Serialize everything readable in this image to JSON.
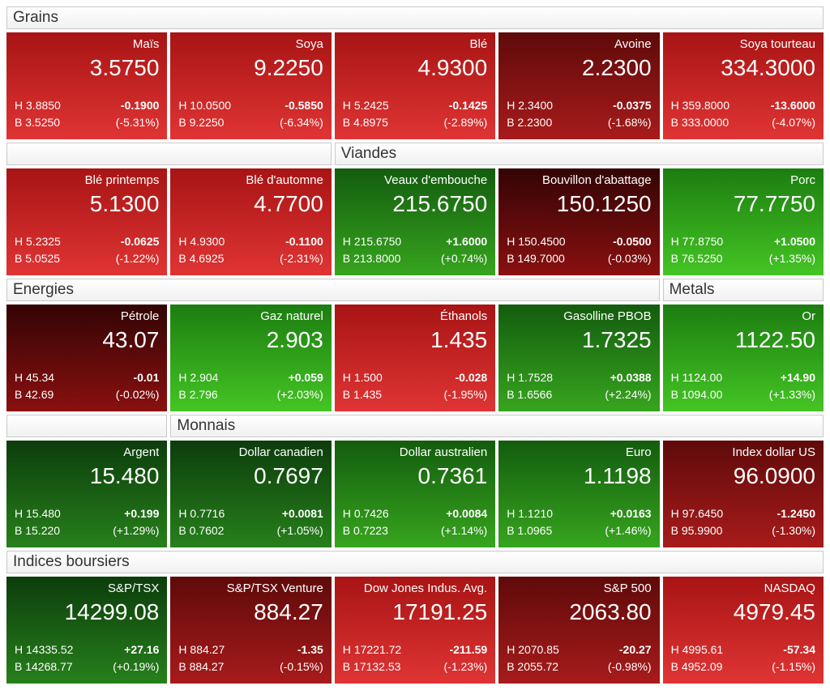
{
  "labels": {
    "high_prefix": "H",
    "low_prefix": "B"
  },
  "palette": {
    "red3": [
      "#a81414",
      "#e03434"
    ],
    "red2": [
      "#5f0a0a",
      "#a81b1b"
    ],
    "red1": [
      "#330404",
      "#8a1010"
    ],
    "green3": [
      "#1c7d10",
      "#44c524"
    ],
    "green2": [
      "#135c0e",
      "#37a51e"
    ],
    "green1": [
      "#0c3d0c",
      "#27801b"
    ]
  },
  "sections": [
    {
      "id": "grains",
      "header": [
        {
          "label": "Grains",
          "span": 5
        }
      ],
      "tiles": [
        {
          "name": "Maïs",
          "price": "3.5750",
          "high": "3.8850",
          "change": "-0.1900",
          "low": "3.5250",
          "pct": "(-5.31%)",
          "tone": "red3"
        },
        {
          "name": "Soya",
          "price": "9.2250",
          "high": "10.0500",
          "change": "-0.5850",
          "low": "9.2250",
          "pct": "(-6.34%)",
          "tone": "red3"
        },
        {
          "name": "Blé",
          "price": "4.9300",
          "high": "5.2425",
          "change": "-0.1425",
          "low": "4.8975",
          "pct": "(-2.89%)",
          "tone": "red3"
        },
        {
          "name": "Avoine",
          "price": "2.2300",
          "high": "2.3400",
          "change": "-0.0375",
          "low": "2.2300",
          "pct": "(-1.68%)",
          "tone": "red2"
        },
        {
          "name": "Soya tourteau",
          "price": "334.3000",
          "high": "359.8000",
          "change": "-13.6000",
          "low": "333.0000",
          "pct": "(-4.07%)",
          "tone": "red3"
        }
      ]
    },
    {
      "id": "viandes",
      "header": [
        {
          "label": "",
          "span": 2
        },
        {
          "label": "Viandes",
          "span": 3
        }
      ],
      "tiles": [
        {
          "name": "Blé printemps",
          "price": "5.1300",
          "high": "5.2325",
          "change": "-0.0625",
          "low": "5.0525",
          "pct": "(-1.22%)",
          "tone": "red3"
        },
        {
          "name": "Blé d'automne",
          "price": "4.7700",
          "high": "4.9300",
          "change": "-0.1100",
          "low": "4.6925",
          "pct": "(-2.31%)",
          "tone": "red3"
        },
        {
          "name": "Veaux d'embouche",
          "price": "215.6750",
          "high": "215.6750",
          "change": "+1.6000",
          "low": "213.8000",
          "pct": "(+0.74%)",
          "tone": "green2"
        },
        {
          "name": "Bouvillon d'abattage",
          "price": "150.1250",
          "high": "150.4500",
          "change": "-0.0500",
          "low": "149.7000",
          "pct": "(-0.03%)",
          "tone": "red1"
        },
        {
          "name": "Porc",
          "price": "77.7750",
          "high": "77.8750",
          "change": "+1.0500",
          "low": "76.5250",
          "pct": "(+1.35%)",
          "tone": "green3"
        }
      ]
    },
    {
      "id": "energies-metals",
      "header": [
        {
          "label": "Energies",
          "span": 4
        },
        {
          "label": "Metals",
          "span": 1
        }
      ],
      "tiles": [
        {
          "name": "Pétrole",
          "price": "43.07",
          "high": "45.34",
          "change": "-0.01",
          "low": "42.69",
          "pct": "(-0.02%)",
          "tone": "red1"
        },
        {
          "name": "Gaz naturel",
          "price": "2.903",
          "high": "2.904",
          "change": "+0.059",
          "low": "2.796",
          "pct": "(+2.03%)",
          "tone": "green3"
        },
        {
          "name": "Éthanols",
          "price": "1.435",
          "high": "1.500",
          "change": "-0.028",
          "low": "1.435",
          "pct": "(-1.95%)",
          "tone": "red3"
        },
        {
          "name": "Gasolline PBOB",
          "price": "1.7325",
          "high": "1.7528",
          "change": "+0.0388",
          "low": "1.6566",
          "pct": "(+2.24%)",
          "tone": "green2"
        },
        {
          "name": "Or",
          "price": "1122.50",
          "high": "1124.00",
          "change": "+14.90",
          "low": "1094.00",
          "pct": "(+1.33%)",
          "tone": "green3"
        }
      ]
    },
    {
      "id": "monnais",
      "header": [
        {
          "label": "",
          "span": 1
        },
        {
          "label": "Monnais",
          "span": 4
        }
      ],
      "tiles": [
        {
          "name": "Argent",
          "price": "15.480",
          "high": "15.480",
          "change": "+0.199",
          "low": "15.220",
          "pct": "(+1.29%)",
          "tone": "green1"
        },
        {
          "name": "Dollar canadien",
          "price": "0.7697",
          "high": "0.7716",
          "change": "+0.0081",
          "low": "0.7602",
          "pct": "(+1.05%)",
          "tone": "green1"
        },
        {
          "name": "Dollar australien",
          "price": "0.7361",
          "high": "0.7426",
          "change": "+0.0084",
          "low": "0.7223",
          "pct": "(+1.14%)",
          "tone": "green2"
        },
        {
          "name": "Euro",
          "price": "1.1198",
          "high": "1.1210",
          "change": "+0.0163",
          "low": "1.0965",
          "pct": "(+1.46%)",
          "tone": "green2"
        },
        {
          "name": "Index dollar US",
          "price": "96.0900",
          "high": "97.6450",
          "change": "-1.2450",
          "low": "95.9900",
          "pct": "(-1.30%)",
          "tone": "red2"
        }
      ]
    },
    {
      "id": "indices-boursiers",
      "header": [
        {
          "label": "Indices boursiers",
          "span": 5
        }
      ],
      "tiles": [
        {
          "name": "S&P/TSX",
          "price": "14299.08",
          "high": "14335.52",
          "change": "+27.16",
          "low": "14268.77",
          "pct": "(+0.19%)",
          "tone": "green1"
        },
        {
          "name": "S&P/TSX Venture",
          "price": "884.27",
          "high": "884.27",
          "change": "-1.35",
          "low": "884.27",
          "pct": "(-0.15%)",
          "tone": "red2"
        },
        {
          "name": "Dow Jones Indus. Avg.",
          "price": "17191.25",
          "high": "17221.72",
          "change": "-211.59",
          "low": "17132.53",
          "pct": "(-1.23%)",
          "tone": "red3"
        },
        {
          "name": "S&P 500",
          "price": "2063.80",
          "high": "2070.85",
          "change": "-20.27",
          "low": "2055.72",
          "pct": "(-0.98%)",
          "tone": "red2"
        },
        {
          "name": "NASDAQ",
          "price": "4979.45",
          "high": "4995.61",
          "change": "-57.34",
          "low": "4952.09",
          "pct": "(-1.15%)",
          "tone": "red3"
        }
      ]
    }
  ]
}
